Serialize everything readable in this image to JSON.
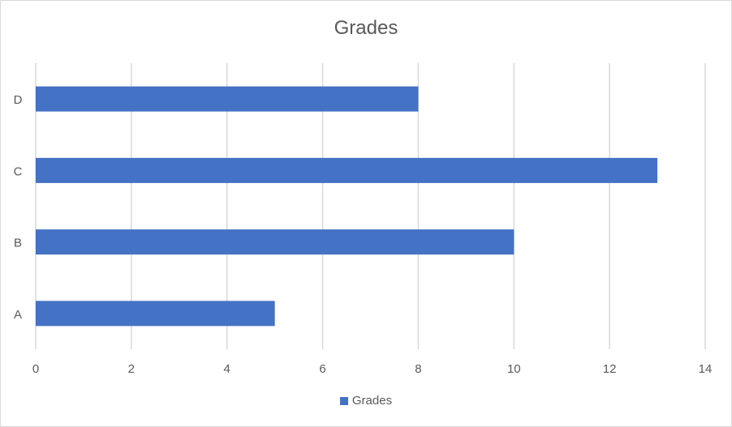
{
  "chart_data": {
    "type": "bar",
    "orientation": "horizontal",
    "title": "Grades",
    "categories": [
      "A",
      "B",
      "C",
      "D"
    ],
    "series": [
      {
        "name": "Grades",
        "values": [
          5,
          10,
          13,
          8
        ],
        "color": "#4472c4"
      }
    ],
    "xlim": [
      0,
      14
    ],
    "x_ticks": [
      0,
      2,
      4,
      6,
      8,
      10,
      12,
      14
    ],
    "grid": true,
    "legend_position": "bottom"
  }
}
